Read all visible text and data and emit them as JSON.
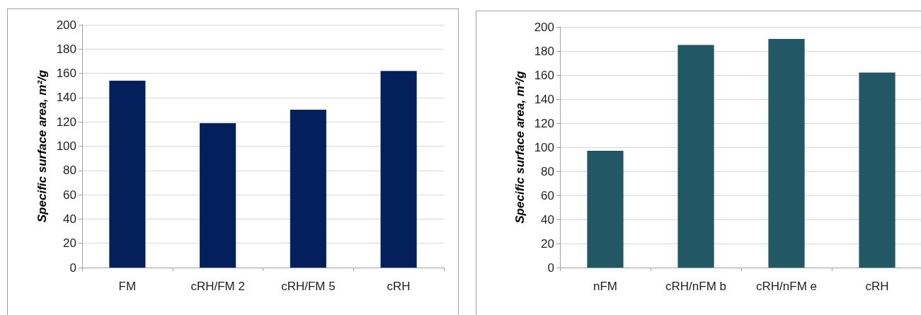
{
  "chart_data": [
    {
      "type": "bar",
      "ylabel": "Specific surface area, m²/g",
      "categories": [
        "FM",
        "cRH/FM 2",
        "cRH/FM 5",
        "cRH"
      ],
      "values": [
        154,
        119,
        130,
        162
      ],
      "color": "#03205c",
      "ylim": [
        0,
        200
      ],
      "yticks": [
        0,
        20,
        40,
        60,
        80,
        100,
        120,
        140,
        160,
        180,
        200
      ],
      "grid": "y"
    },
    {
      "type": "bar",
      "ylabel": "Specific surface area, m²/g",
      "categories": [
        "nFM",
        "cRH/nFM b",
        "cRH/nFM e",
        "cRH"
      ],
      "values": [
        97,
        185,
        190,
        162
      ],
      "color": "#225866",
      "ylim": [
        0,
        200
      ],
      "yticks": [
        0,
        20,
        40,
        60,
        80,
        100,
        120,
        140,
        160,
        180,
        200
      ],
      "grid": "y"
    }
  ]
}
